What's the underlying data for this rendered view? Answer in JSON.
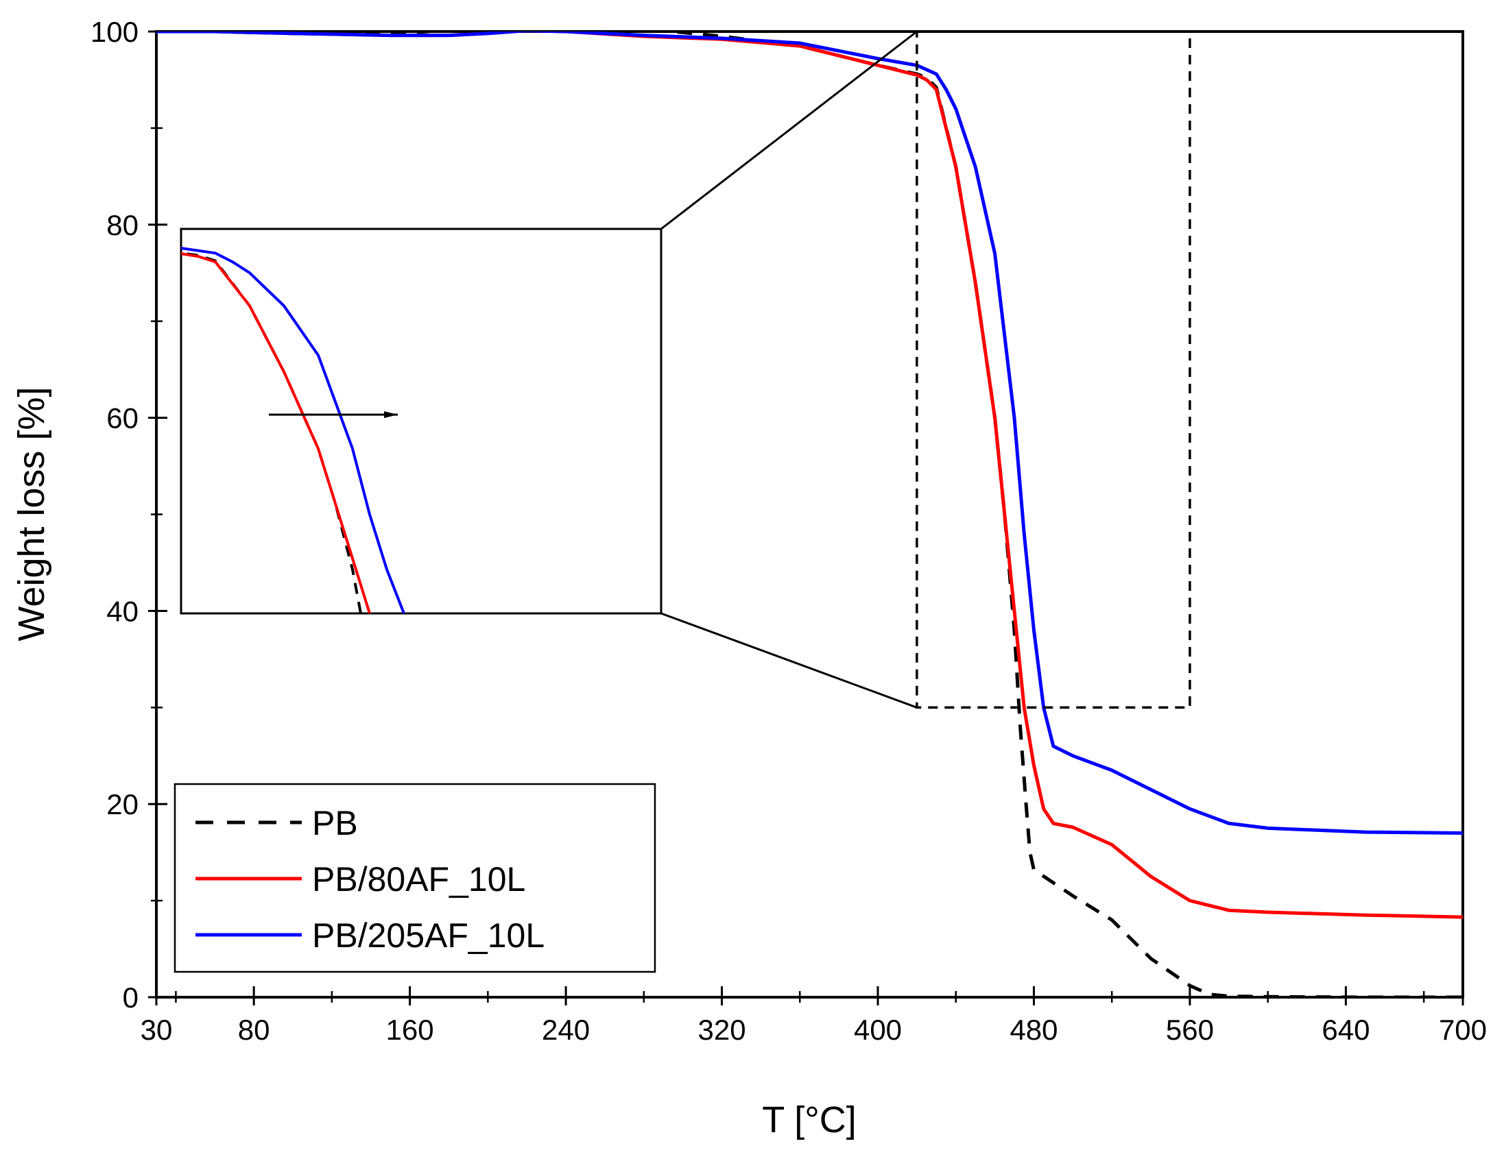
{
  "chart_data": {
    "type": "line",
    "title": "",
    "xlabel": "T [°C]",
    "ylabel": "Weight loss [%]",
    "xlim": [
      30,
      700
    ],
    "ylim": [
      0,
      100
    ],
    "xticks": [
      30,
      80,
      160,
      240,
      320,
      400,
      480,
      560,
      640,
      700
    ],
    "yticks": [
      0,
      20,
      40,
      60,
      80,
      100
    ],
    "legend_position": "bottom-left",
    "colors": {
      "PB": "#000000",
      "PB/80AF_10L": "#ff0000",
      "PB/205AF_10L": "#0000ff"
    },
    "series": [
      {
        "name": "PB",
        "style": "dashed",
        "x": [
          30,
          60,
          100,
          150,
          200,
          240,
          280,
          320,
          360,
          400,
          420,
          425,
          430,
          440,
          450,
          460,
          465,
          470,
          473,
          476,
          478,
          480,
          500,
          520,
          540,
          560,
          570,
          580,
          600,
          650,
          700
        ],
        "y": [
          100,
          100,
          99.8,
          99.7,
          100.5,
          100.6,
          100.3,
          99.5,
          98.5,
          96.5,
          95.6,
          95.2,
          94.2,
          86,
          74,
          60,
          50,
          38,
          28,
          20,
          15,
          13.2,
          10.5,
          8,
          4,
          1.2,
          0.3,
          0.1,
          0.05,
          0,
          0
        ]
      },
      {
        "name": "PB/80AF_10L",
        "style": "solid",
        "x": [
          30,
          60,
          100,
          150,
          180,
          200,
          220,
          240,
          280,
          320,
          360,
          400,
          420,
          425,
          430,
          440,
          450,
          460,
          465,
          470,
          475,
          480,
          485,
          490,
          500,
          520,
          540,
          560,
          580,
          600,
          650,
          700
        ],
        "y": [
          100,
          100,
          99.8,
          99.6,
          99.6,
          99.8,
          100.1,
          100,
          99.5,
          99.2,
          98.5,
          96.5,
          95.5,
          95,
          94,
          86,
          74,
          60,
          50,
          40,
          30,
          24,
          19.5,
          18,
          17.6,
          15.8,
          12.5,
          10,
          9,
          8.8,
          8.5,
          8.3
        ]
      },
      {
        "name": "PB/205AF_10L",
        "style": "solid",
        "x": [
          30,
          60,
          100,
          150,
          180,
          200,
          220,
          240,
          280,
          320,
          360,
          400,
          420,
          430,
          435,
          440,
          450,
          460,
          470,
          475,
          480,
          485,
          490,
          500,
          520,
          540,
          560,
          580,
          600,
          650,
          700
        ],
        "y": [
          100,
          100,
          99.8,
          99.6,
          99.6,
          99.8,
          100.1,
          100,
          99.6,
          99.3,
          98.8,
          97.2,
          96.5,
          95.6,
          94,
          92,
          86,
          77,
          60,
          48,
          38,
          30,
          26,
          25,
          23.5,
          21.5,
          19.5,
          18,
          17.5,
          17.1,
          17
        ]
      }
    ],
    "annotations": [
      {
        "type": "zoom-box",
        "x_range": [
          420,
          560
        ],
        "y_range": [
          30,
          100
        ],
        "note": "dashed region magnified in inset"
      },
      {
        "type": "inset",
        "note": "magnified view of decomposition onset",
        "arrow": "points right (shift to higher T)"
      }
    ]
  }
}
